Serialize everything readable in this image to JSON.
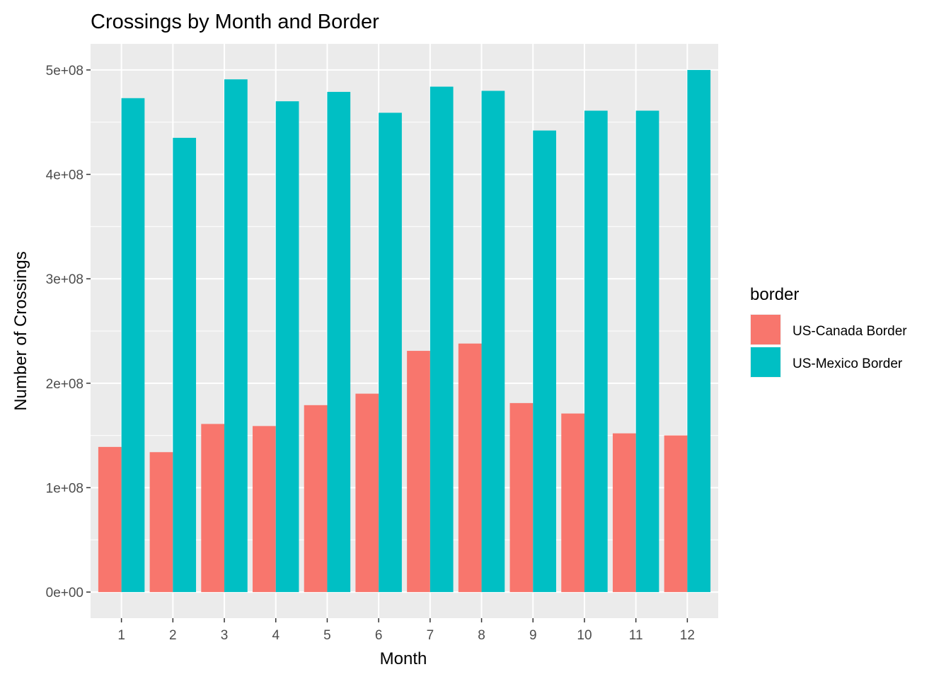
{
  "chart_data": {
    "type": "bar",
    "title": "Crossings by Month and Border",
    "xlabel": "Month",
    "ylabel": "Number of Crossings",
    "categories": [
      "1",
      "2",
      "3",
      "4",
      "5",
      "6",
      "7",
      "8",
      "9",
      "10",
      "11",
      "12"
    ],
    "yticks": [
      {
        "value": 0,
        "label": "0e+00"
      },
      {
        "value": 100000000,
        "label": "1e+08"
      },
      {
        "value": 200000000,
        "label": "2e+08"
      },
      {
        "value": 300000000,
        "label": "3e+08"
      },
      {
        "value": 400000000,
        "label": "4e+08"
      },
      {
        "value": 500000000,
        "label": "5e+08"
      }
    ],
    "ylim": [
      -25000000,
      525000000
    ],
    "grid": true,
    "legend": {
      "title": "border",
      "position": "right"
    },
    "series": [
      {
        "name": "US-Canada Border",
        "color": "#F8766D",
        "values": [
          139000000,
          134000000,
          161000000,
          159000000,
          179000000,
          190000000,
          231000000,
          238000000,
          181000000,
          171000000,
          152000000,
          150000000
        ]
      },
      {
        "name": "US-Mexico Border",
        "color": "#00BFC4",
        "values": [
          473000000,
          435000000,
          491000000,
          470000000,
          479000000,
          459000000,
          484000000,
          480000000,
          442000000,
          461000000,
          461000000,
          500000000
        ]
      }
    ],
    "panel_background": "#EBEBEB",
    "grid_color": "#FFFFFF"
  }
}
